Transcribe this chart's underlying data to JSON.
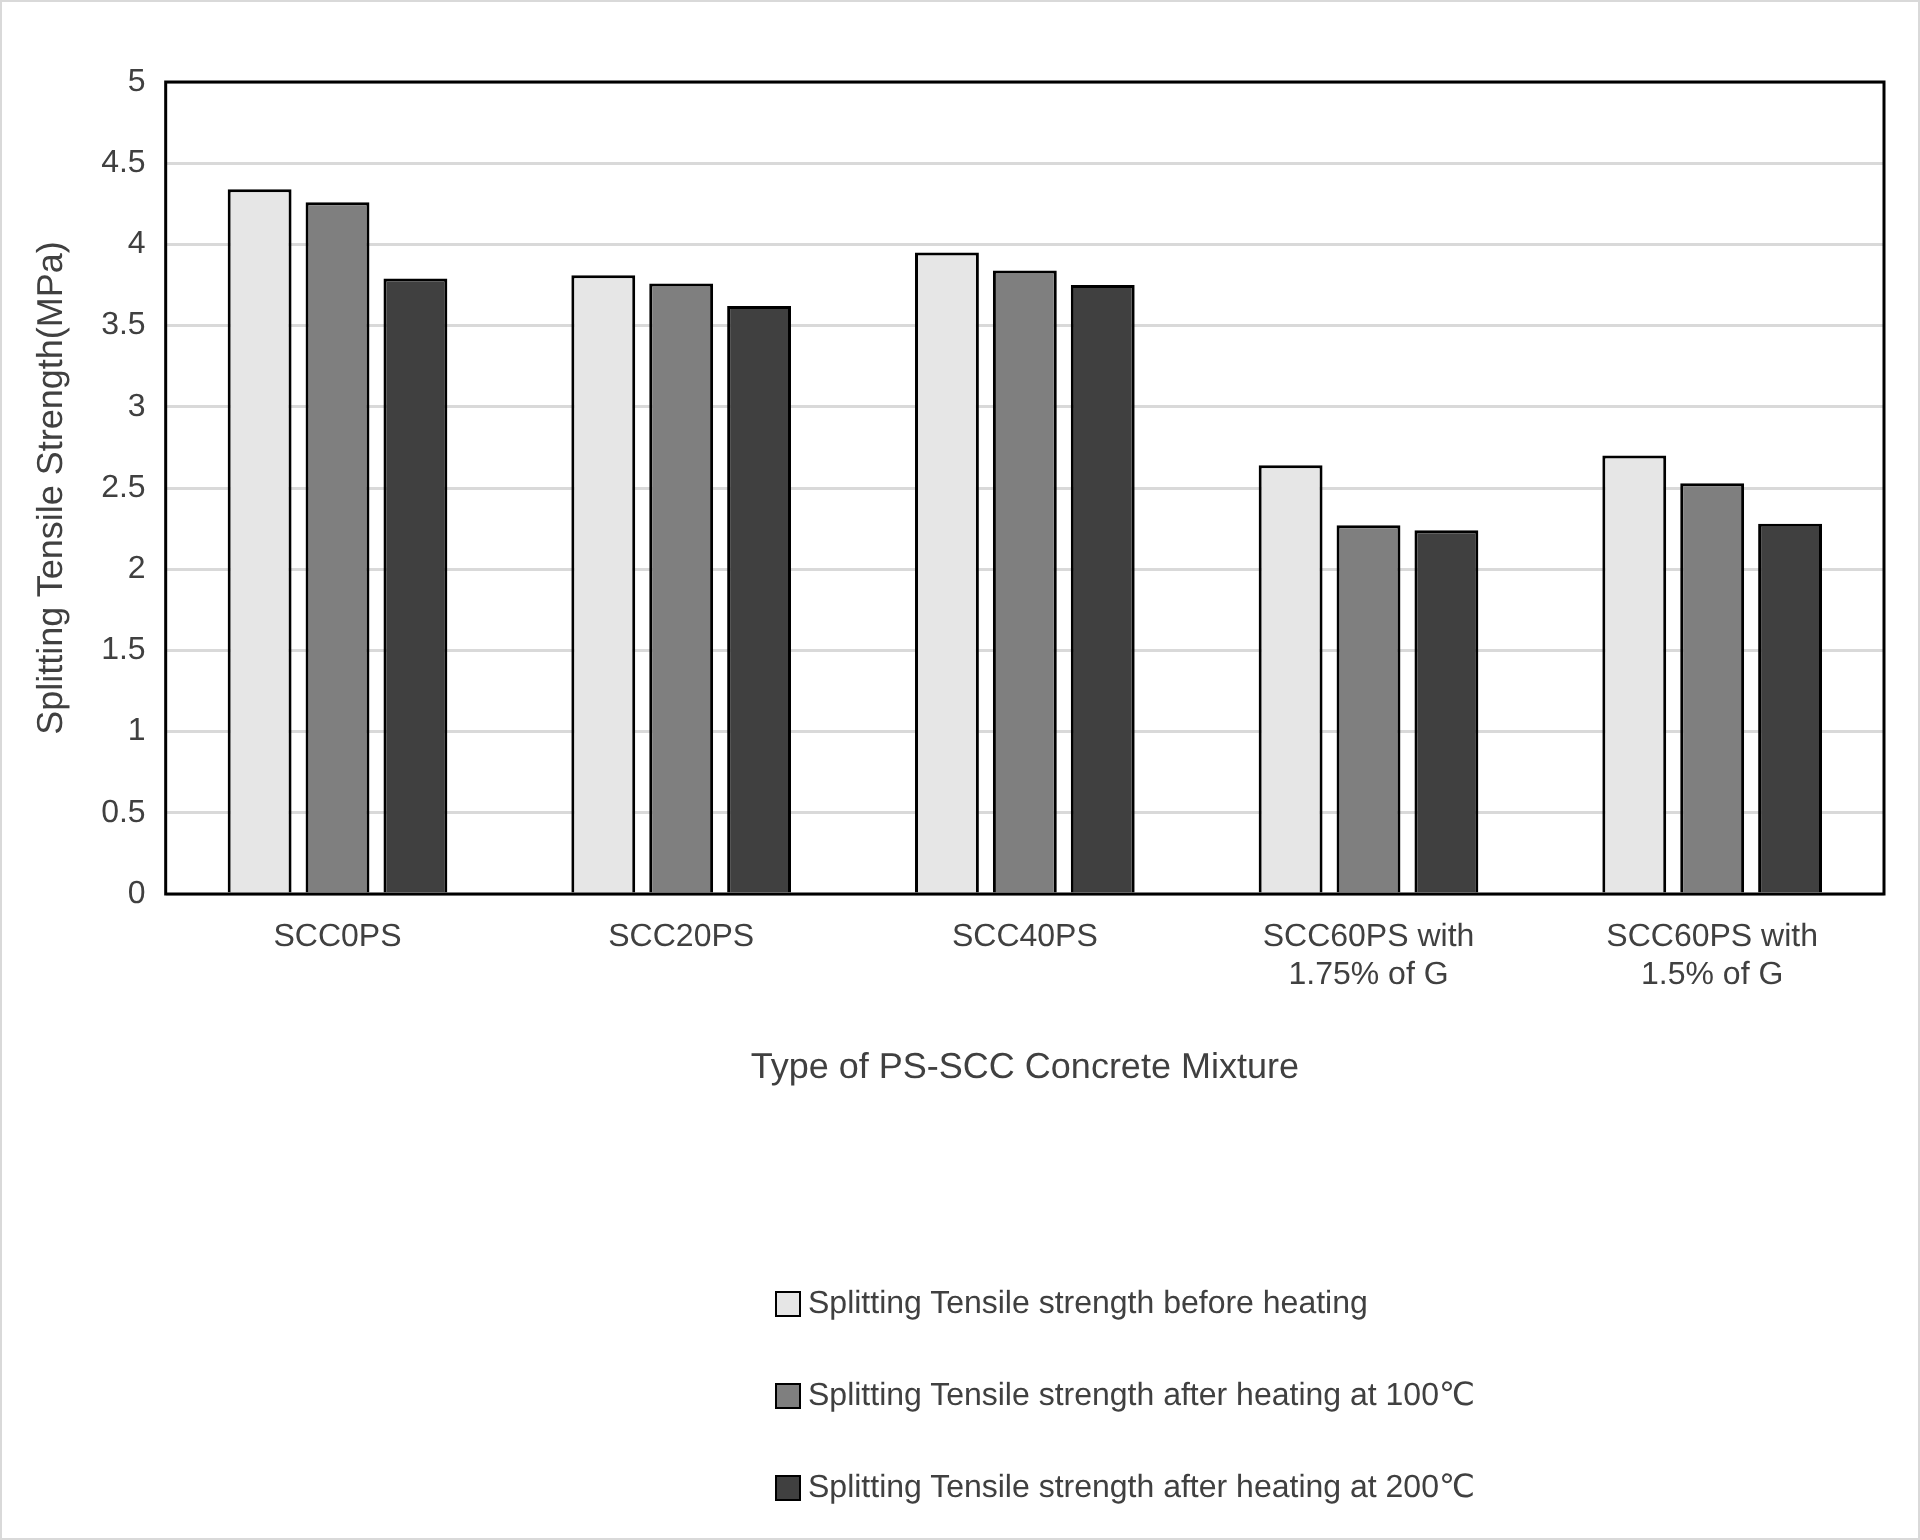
{
  "chart_data": {
    "type": "bar",
    "xlabel": "Type of PS-SCC Concrete Mixture",
    "ylabel": "Splitting Tensile Strength(MPa)",
    "categories": [
      "SCC0PS",
      "SCC20PS",
      "SCC40PS",
      "SCC60PS with 1.75% of G",
      "SCC60PS with 1.5% of G"
    ],
    "series": [
      {
        "name": "Splitting Tensile strength before heating",
        "color": "#e6e6e6",
        "values": [
          4.34,
          3.81,
          3.95,
          2.64,
          2.7
        ]
      },
      {
        "name": "Splitting Tensile strength after heating at 100℃",
        "color": "#7f7f7f",
        "values": [
          4.26,
          3.76,
          3.84,
          2.27,
          2.53
        ]
      },
      {
        "name": "Splitting Tensile strength after heating at 200℃",
        "color": "#404040",
        "values": [
          3.79,
          3.62,
          3.75,
          2.24,
          2.28
        ]
      }
    ],
    "ylim": [
      0,
      5
    ],
    "yticks": [
      0,
      0.5,
      1,
      1.5,
      2,
      2.5,
      3,
      3.5,
      4,
      4.5,
      5
    ],
    "grid": "y",
    "legend": "bottom"
  }
}
